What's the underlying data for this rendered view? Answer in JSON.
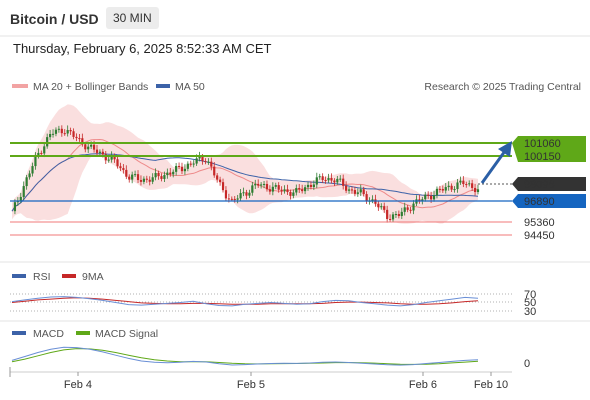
{
  "header": {
    "title": "Bitcoin / USD",
    "timeframe": "30 MIN"
  },
  "datetime": "Thursday, February 6, 2025 8:52:33 AM CET",
  "legend": {
    "bollinger": "MA 20 + Bollinger Bands",
    "ma50": "MA 50",
    "credit": "Research © 2025 Trading Central"
  },
  "colors": {
    "up": "#2e7d32",
    "down": "#c62828",
    "ma50": "#3c62a8",
    "bb": "#f2a3a3",
    "resistance": "#5fa818",
    "support": "#f07a7a",
    "pivot": "#1565c0",
    "current_tag": "#333333",
    "arrow": "#2b5fa6"
  },
  "chart_data": [
    {
      "type": "line",
      "title": "Bitcoin / USD 30 MIN",
      "x_ticks": [
        "Feb 4",
        "Feb 5",
        "Feb 6",
        "Feb 10"
      ],
      "ylim": [
        92000,
        106000
      ],
      "levels": {
        "resistance": [
          101060,
          100150
        ],
        "pivot": 96890,
        "support": [
          95360,
          94450
        ]
      },
      "current_price": 98096,
      "series": [
        {
          "name": "MA 20 + Bollinger Bands"
        },
        {
          "name": "MA 50"
        }
      ],
      "price_path": [
        96600,
        98500,
        100300,
        101600,
        101900,
        101300,
        100700,
        100300,
        99800,
        98900,
        98700,
        98800,
        99100,
        99400,
        99800,
        100100,
        98400,
        97300,
        97900,
        98400,
        98200,
        98000,
        97900,
        98400,
        98800,
        98700,
        98100,
        97800,
        97300,
        96400,
        96500,
        97200,
        97600,
        98000,
        98300,
        98500,
        98096
      ]
    },
    {
      "type": "line",
      "title": "RSI",
      "series": [
        {
          "name": "RSI"
        },
        {
          "name": "9MA"
        }
      ],
      "levels": [
        70,
        50,
        30
      ],
      "rsi": [
        52,
        56,
        60,
        63,
        64,
        62,
        59,
        55,
        50,
        45,
        44,
        46,
        48,
        50,
        53,
        47,
        43,
        42,
        46,
        48,
        50,
        48,
        46,
        47,
        52,
        55,
        54,
        50,
        47,
        44,
        42,
        45,
        50,
        54,
        58,
        62,
        60
      ],
      "ma9": [
        50,
        53,
        56,
        58,
        60,
        61,
        60,
        58,
        55,
        52,
        49,
        48,
        47,
        47,
        48,
        48,
        47,
        46,
        46,
        46,
        47,
        47,
        47,
        47,
        48,
        50,
        51,
        51,
        50,
        49,
        47,
        46,
        46,
        47,
        49,
        52,
        54
      ]
    },
    {
      "type": "line",
      "title": "MACD",
      "series": [
        {
          "name": "MACD"
        },
        {
          "name": "MACD Signal"
        }
      ],
      "levels": [
        0
      ],
      "macd": [
        200,
        500,
        800,
        1050,
        1200,
        1180,
        1050,
        850,
        600,
        350,
        150,
        50,
        20,
        60,
        120,
        80,
        -60,
        -150,
        -120,
        -80,
        -40,
        -20,
        -30,
        0,
        60,
        80,
        40,
        -20,
        -80,
        -140,
        -160,
        -120,
        -40,
        40,
        120,
        200,
        250
      ],
      "signal": [
        100,
        300,
        550,
        800,
        1000,
        1100,
        1080,
        980,
        800,
        600,
        400,
        250,
        150,
        100,
        100,
        90,
        40,
        -20,
        -60,
        -70,
        -60,
        -45,
        -35,
        -25,
        0,
        30,
        40,
        20,
        -10,
        -50,
        -90,
        -110,
        -90,
        -50,
        10,
        70,
        130
      ]
    }
  ],
  "labels": {
    "r1": "101060",
    "r2": "100150",
    "current": "98096",
    "pivot": "96890",
    "s1": "95360",
    "s2": "94450",
    "rsi_legend": "RSI",
    "rsi_ma_legend": "9MA",
    "rsi_70": "70",
    "rsi_50": "50",
    "rsi_30": "30",
    "macd_legend": "MACD",
    "macd_signal_legend": "MACD Signal",
    "macd_zero": "0",
    "x1": "Feb 4",
    "x2": "Feb 5",
    "x3": "Feb 6",
    "x4": "Feb 10"
  }
}
